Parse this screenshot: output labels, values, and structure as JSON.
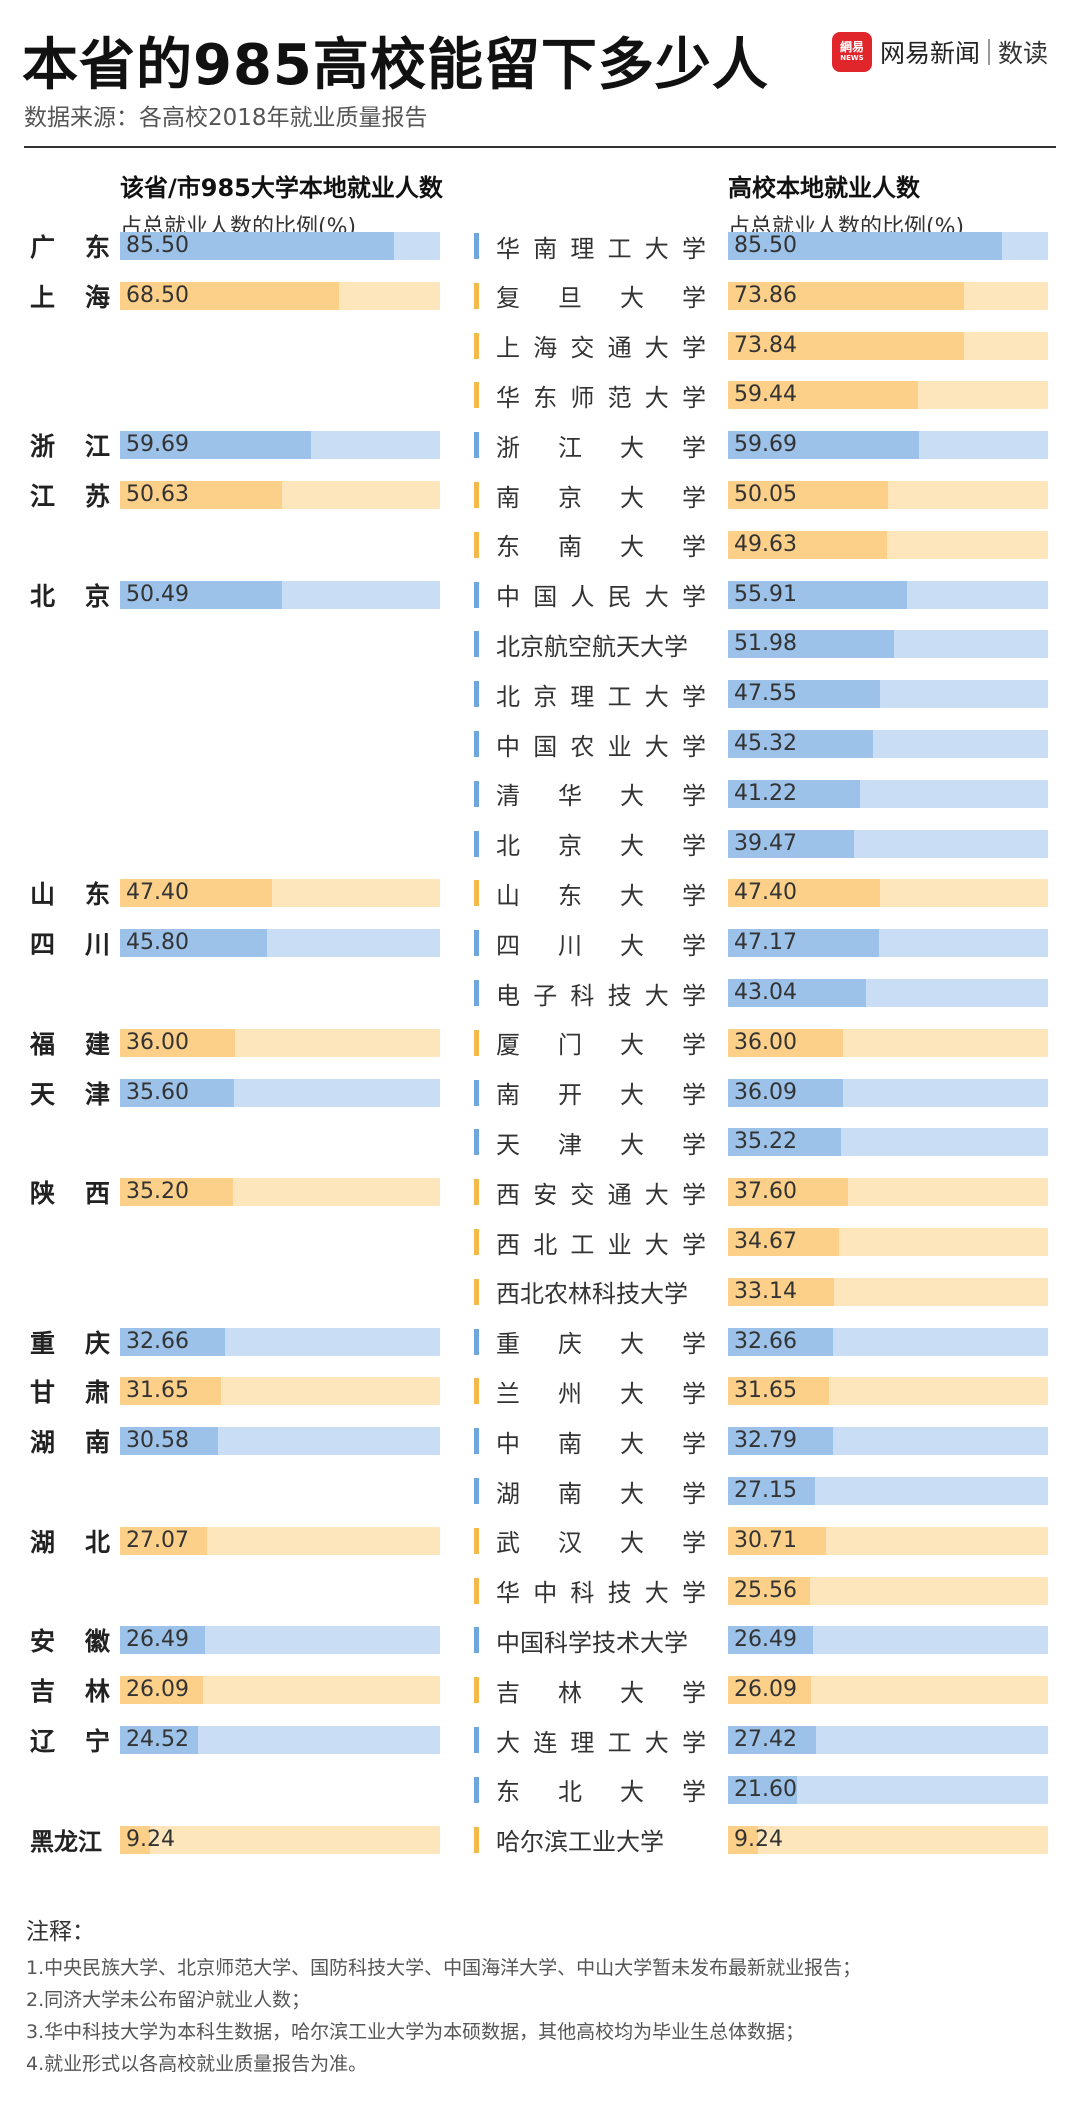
{
  "title": "本省的985高校能留下多少人",
  "source": "数据来源：各高校2018年就业质量报告",
  "brand": {
    "logo_top": "網易",
    "logo_bottom": "NEWS",
    "name": "网易新闻",
    "tag": "数读"
  },
  "left_header": {
    "line1": "该省/市985大学本地就业人数",
    "line2": "占总就业人数的比例(%)"
  },
  "right_header": {
    "line1": "高校本地就业人数",
    "line2": "占总就业人数的比例(%)"
  },
  "colors": {
    "blue": "#9cc2ea",
    "blue_light": "#c9ddf4",
    "orange": "#fdd08a",
    "orange_light": "#fde6bc",
    "blue_mark": "#6ea6de",
    "orange_mark": "#f4b84b"
  },
  "chart_data": {
    "type": "bar",
    "xlim": [
      0,
      100
    ],
    "provinces": [
      {
        "name": "广东",
        "value": 85.5,
        "row": 0,
        "color": "blue"
      },
      {
        "name": "上海",
        "value": 68.5,
        "row": 1,
        "color": "orange"
      },
      {
        "name": "浙江",
        "value": 59.69,
        "row": 4,
        "color": "blue"
      },
      {
        "name": "江苏",
        "value": 50.63,
        "row": 5,
        "color": "orange"
      },
      {
        "name": "北京",
        "value": 50.49,
        "row": 7,
        "color": "blue"
      },
      {
        "name": "山东",
        "value": 47.4,
        "row": 13,
        "color": "orange"
      },
      {
        "name": "四川",
        "value": 45.8,
        "row": 14,
        "color": "blue"
      },
      {
        "name": "福建",
        "value": 36.0,
        "row": 16,
        "color": "orange"
      },
      {
        "name": "天津",
        "value": 35.6,
        "row": 17,
        "color": "blue"
      },
      {
        "name": "陕西",
        "value": 35.2,
        "row": 19,
        "color": "orange"
      },
      {
        "name": "重庆",
        "value": 32.66,
        "row": 22,
        "color": "blue"
      },
      {
        "name": "甘肃",
        "value": 31.65,
        "row": 23,
        "color": "orange"
      },
      {
        "name": "湖南",
        "value": 30.58,
        "row": 24,
        "color": "blue"
      },
      {
        "name": "湖北",
        "value": 27.07,
        "row": 26,
        "color": "orange"
      },
      {
        "name": "安徽",
        "value": 26.49,
        "row": 28,
        "color": "blue"
      },
      {
        "name": "吉林",
        "value": 26.09,
        "row": 29,
        "color": "orange"
      },
      {
        "name": "辽宁",
        "value": 24.52,
        "row": 30,
        "color": "blue"
      },
      {
        "name": "黑龙江",
        "value": 9.24,
        "row": 32,
        "color": "orange"
      }
    ],
    "universities": [
      {
        "name": "华南理工大学",
        "value": 85.5,
        "color": "blue"
      },
      {
        "name": "复旦大学",
        "value": 73.86,
        "color": "orange"
      },
      {
        "name": "上海交通大学",
        "value": 73.84,
        "color": "orange"
      },
      {
        "name": "华东师范大学",
        "value": 59.44,
        "color": "orange"
      },
      {
        "name": "浙江大学",
        "value": 59.69,
        "color": "blue"
      },
      {
        "name": "南京大学",
        "value": 50.05,
        "color": "orange"
      },
      {
        "name": "东南大学",
        "value": 49.63,
        "color": "orange"
      },
      {
        "name": "中国人民大学",
        "value": 55.91,
        "color": "blue"
      },
      {
        "name": "北京航空航天大学",
        "value": 51.98,
        "color": "blue"
      },
      {
        "name": "北京理工大学",
        "value": 47.55,
        "color": "blue"
      },
      {
        "name": "中国农业大学",
        "value": 45.32,
        "color": "blue"
      },
      {
        "name": "清华大学",
        "value": 41.22,
        "color": "blue"
      },
      {
        "name": "北京大学",
        "value": 39.47,
        "color": "blue"
      },
      {
        "name": "山东大学",
        "value": 47.4,
        "color": "orange"
      },
      {
        "name": "四川大学",
        "value": 47.17,
        "color": "blue"
      },
      {
        "name": "电子科技大学",
        "value": 43.04,
        "color": "blue"
      },
      {
        "name": "厦门大学",
        "value": 36.0,
        "color": "orange"
      },
      {
        "name": "南开大学",
        "value": 36.09,
        "color": "blue"
      },
      {
        "name": "天津大学",
        "value": 35.22,
        "color": "blue"
      },
      {
        "name": "西安交通大学",
        "value": 37.6,
        "color": "orange"
      },
      {
        "name": "西北工业大学",
        "value": 34.67,
        "color": "orange"
      },
      {
        "name": "西北农林科技大学",
        "value": 33.14,
        "color": "orange"
      },
      {
        "name": "重庆大学",
        "value": 32.66,
        "color": "blue"
      },
      {
        "name": "兰州大学",
        "value": 31.65,
        "color": "orange"
      },
      {
        "name": "中南大学",
        "value": 32.79,
        "color": "blue"
      },
      {
        "name": "湖南大学",
        "value": 27.15,
        "color": "blue"
      },
      {
        "name": "武汉大学",
        "value": 30.71,
        "color": "orange"
      },
      {
        "name": "华中科技大学",
        "value": 25.56,
        "color": "orange"
      },
      {
        "name": "中国科学技术大学",
        "value": 26.49,
        "color": "blue"
      },
      {
        "name": "吉林大学",
        "value": 26.09,
        "color": "orange"
      },
      {
        "name": "大连理工大学",
        "value": 27.42,
        "color": "blue"
      },
      {
        "name": "东北大学",
        "value": 21.6,
        "color": "blue"
      },
      {
        "name": "哈尔滨工业大学",
        "value": 9.24,
        "color": "orange"
      }
    ]
  },
  "notes": {
    "title": "注释：",
    "items": [
      "1.中央民族大学、北京师范大学、国防科技大学、中国海洋大学、中山大学暂未发布最新就业报告；",
      "2.同济大学未公布留沪就业人数；",
      "3.华中科技大学为本科生数据，哈尔滨工业大学为本硕数据，其他高校均为毕业生总体数据；",
      "4.就业形式以各高校就业质量报告为准。"
    ]
  }
}
